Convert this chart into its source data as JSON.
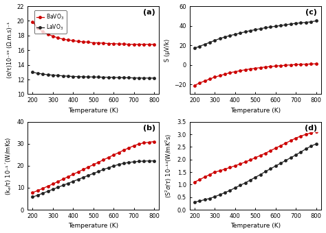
{
  "temp": [
    200,
    225,
    250,
    275,
    300,
    325,
    350,
    375,
    400,
    425,
    450,
    475,
    500,
    525,
    550,
    575,
    600,
    625,
    650,
    675,
    700,
    725,
    750,
    775,
    800
  ],
  "panel_a": {
    "label": "(a)",
    "ylabel": "(σ/τ)10⁻¹⁹ (Ω.m.s)⁻¹",
    "ylim": [
      10,
      22
    ],
    "yticks": [
      10,
      12,
      14,
      16,
      18,
      20,
      22
    ],
    "BaVO3": [
      19.9,
      19.0,
      18.5,
      18.2,
      17.9,
      17.7,
      17.5,
      17.4,
      17.3,
      17.2,
      17.15,
      17.1,
      17.0,
      17.0,
      16.95,
      16.9,
      16.9,
      16.85,
      16.85,
      16.8,
      16.8,
      16.8,
      16.8,
      16.8,
      16.8
    ],
    "LaVO3": [
      13.0,
      12.85,
      12.75,
      12.65,
      12.6,
      12.55,
      12.5,
      12.45,
      12.42,
      12.4,
      12.38,
      12.36,
      12.35,
      12.33,
      12.32,
      12.3,
      12.28,
      12.27,
      12.25,
      12.24,
      12.22,
      12.21,
      12.2,
      12.2,
      12.2
    ],
    "legend_BaVO3": "BaVO$_3$",
    "legend_LaVO3": "LaVO$_3$"
  },
  "panel_b": {
    "label": "(b)",
    "ylabel": "(k$_e$/τ) 10⁻¹´(W/mKs)",
    "ylim": [
      0,
      40
    ],
    "yticks": [
      0,
      10,
      20,
      30,
      40
    ],
    "BaVO3": [
      7.8,
      8.7,
      9.7,
      10.7,
      11.7,
      12.8,
      13.9,
      15.0,
      16.1,
      17.2,
      18.3,
      19.4,
      20.5,
      21.6,
      22.7,
      23.8,
      24.9,
      26.0,
      27.1,
      28.1,
      29.1,
      29.9,
      30.4,
      30.7,
      31.0
    ],
    "LaVO3": [
      5.8,
      6.6,
      7.5,
      8.4,
      9.3,
      10.2,
      11.1,
      12.0,
      12.9,
      13.8,
      14.7,
      15.6,
      16.5,
      17.4,
      18.3,
      19.1,
      19.9,
      20.6,
      21.1,
      21.5,
      21.8,
      22.0,
      22.1,
      22.2,
      22.2
    ]
  },
  "panel_c": {
    "label": "(c)",
    "ylabel": "S (μV/k)",
    "ylim": [
      -30,
      60
    ],
    "yticks": [
      -20,
      0,
      20,
      40,
      60
    ],
    "BaVO3": [
      -21.0,
      -18.5,
      -16.5,
      -14.5,
      -12.5,
      -11.0,
      -9.5,
      -8.0,
      -7.0,
      -6.0,
      -5.0,
      -4.2,
      -3.5,
      -2.8,
      -2.2,
      -1.7,
      -1.2,
      -0.8,
      -0.4,
      0.0,
      0.3,
      0.5,
      0.7,
      0.9,
      1.1
    ],
    "LaVO3": [
      17.0,
      19.0,
      21.0,
      23.0,
      25.0,
      27.0,
      28.5,
      30.0,
      31.2,
      32.5,
      33.8,
      35.0,
      36.0,
      37.0,
      38.0,
      38.8,
      39.5,
      40.2,
      41.0,
      41.8,
      42.5,
      43.0,
      43.5,
      44.0,
      45.0
    ]
  },
  "panel_d": {
    "label": "(d)",
    "ylabel": "(S$^2σ/τ$) 10⁻¹²(W/mK$^2$s)",
    "ylim": [
      0,
      3.5
    ],
    "yticks": [
      0,
      0.5,
      1.0,
      1.5,
      2.0,
      2.5,
      3.0,
      3.5
    ],
    "BaVO3": [
      1.1,
      1.2,
      1.3,
      1.4,
      1.5,
      1.55,
      1.62,
      1.68,
      1.75,
      1.82,
      1.9,
      1.98,
      2.07,
      2.16,
      2.25,
      2.35,
      2.45,
      2.55,
      2.65,
      2.75,
      2.85,
      2.93,
      3.0,
      3.06,
      3.12
    ],
    "LaVO3": [
      0.3,
      0.35,
      0.4,
      0.45,
      0.52,
      0.6,
      0.68,
      0.77,
      0.87,
      0.97,
      1.07,
      1.18,
      1.29,
      1.4,
      1.52,
      1.63,
      1.74,
      1.85,
      1.96,
      2.07,
      2.18,
      2.3,
      2.42,
      2.53,
      2.62
    ]
  },
  "xlabel": "Temperature (K)",
  "xlim": [
    175,
    825
  ],
  "xticks": [
    200,
    300,
    400,
    500,
    600,
    700,
    800
  ],
  "color_BaVO3": "#cc0000",
  "color_LaVO3": "#222222",
  "bg_color": "#ffffff"
}
